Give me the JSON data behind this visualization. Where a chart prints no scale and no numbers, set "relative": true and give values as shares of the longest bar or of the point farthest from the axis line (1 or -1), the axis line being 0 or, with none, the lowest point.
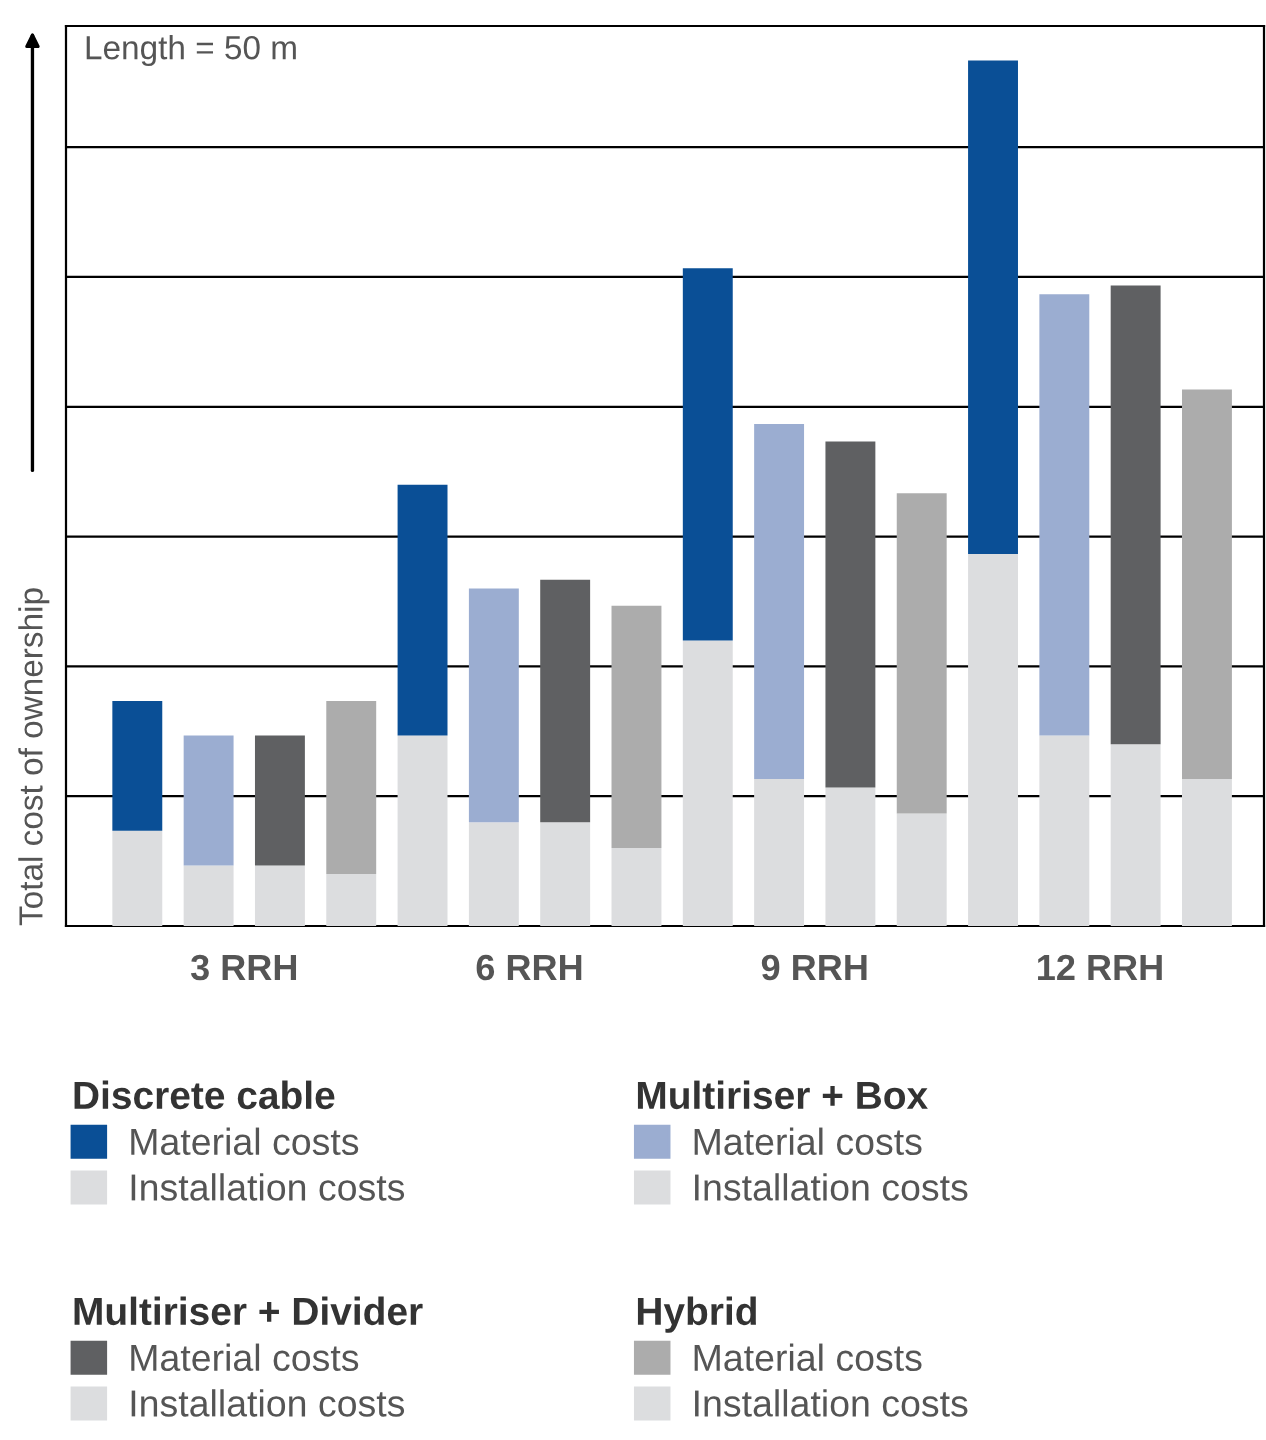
{
  "chart_data": {
    "type": "bar",
    "stacked": true,
    "relative": true,
    "ylabel": "Total cost of ownership",
    "categories": [
      null,
      "3 RRH",
      null,
      null,
      null,
      "6 RRH",
      null,
      null,
      null,
      "9 RRH",
      null,
      null,
      null,
      "12 RRH",
      null,
      null
    ],
    "annotations": [
      "Length = 50 m",
      "Discrete cable",
      "Multiriser + Box",
      "Multiriser + Divider",
      "Hybrid"
    ],
    "series": [
      {
        "name": "Installation costs",
        "color": "#dcdddf",
        "values": [
          0.11,
          null,
          null,
          null,
          0.22,
          null,
          null,
          null,
          0.33,
          null,
          null,
          null,
          0.43,
          null,
          null,
          null
        ]
      },
      {
        "name": "Material costs",
        "color": "#0a4f96",
        "values": [
          0.15,
          null,
          null,
          null,
          0.29,
          null,
          null,
          null,
          0.43,
          null,
          null,
          null,
          0.57,
          null,
          null,
          null
        ]
      },
      {
        "name": "Installation costs",
        "color": "#dcdddf",
        "values": [
          null,
          0.07,
          null,
          null,
          null,
          0.12,
          null,
          null,
          null,
          0.17,
          null,
          null,
          null,
          0.22,
          null,
          null
        ]
      },
      {
        "name": "Material costs",
        "color": "#9badd1",
        "values": [
          null,
          0.15,
          null,
          null,
          null,
          0.27,
          null,
          null,
          null,
          0.41,
          null,
          null,
          null,
          0.51,
          null,
          null
        ]
      },
      {
        "name": "Installation costs",
        "color": "#dcdddf",
        "values": [
          null,
          null,
          0.07,
          null,
          null,
          null,
          0.12,
          null,
          null,
          null,
          0.16,
          null,
          null,
          null,
          0.21,
          null
        ]
      },
      {
        "name": "Material costs",
        "color": "#5f6062",
        "values": [
          null,
          null,
          0.15,
          null,
          null,
          null,
          0.28,
          null,
          null,
          null,
          0.4,
          null,
          null,
          null,
          0.53,
          null
        ]
      },
      {
        "name": "Installation costs",
        "color": "#dcdddf",
        "values": [
          null,
          null,
          null,
          0.06,
          null,
          null,
          null,
          0.09,
          null,
          null,
          null,
          0.13,
          null,
          null,
          null,
          0.17
        ]
      },
      {
        "name": "Material costs",
        "color": "#acacac",
        "values": [
          null,
          null,
          null,
          0.2,
          null,
          null,
          null,
          0.28,
          null,
          null,
          null,
          0.37,
          null,
          null,
          null,
          0.45
        ]
      }
    ],
    "grid": "y",
    "legend": "bottom"
  }
}
